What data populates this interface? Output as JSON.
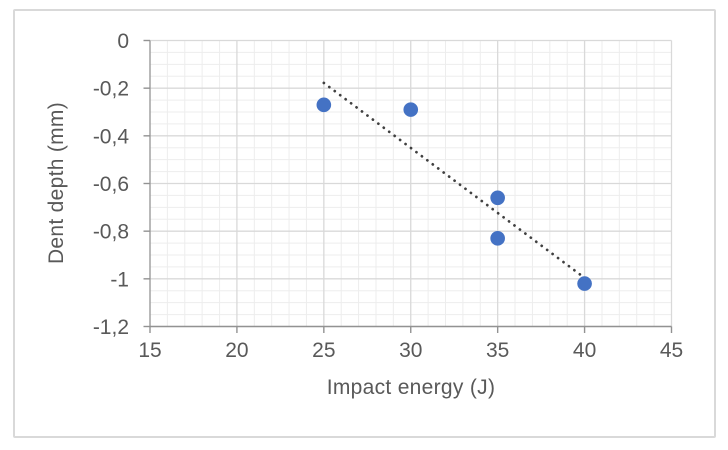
{
  "chart_data": {
    "type": "scatter",
    "title": "",
    "xlabel": "Impact energy (J)",
    "ylabel": "Dent depth (mm)",
    "xlim": [
      15,
      45
    ],
    "ylim": [
      -1.2,
      0
    ],
    "x_ticks": [
      {
        "value": 15,
        "label": "15"
      },
      {
        "value": 20,
        "label": "20"
      },
      {
        "value": 25,
        "label": "25"
      },
      {
        "value": 30,
        "label": "30"
      },
      {
        "value": 35,
        "label": "35"
      },
      {
        "value": 40,
        "label": "40"
      },
      {
        "value": 45,
        "label": "45"
      }
    ],
    "y_ticks": [
      {
        "value": 0,
        "label": "0"
      },
      {
        "value": -0.2,
        "label": "-0,2"
      },
      {
        "value": -0.4,
        "label": "-0,4"
      },
      {
        "value": -0.6,
        "label": "-0,6"
      },
      {
        "value": -0.8,
        "label": "-0,8"
      },
      {
        "value": -1,
        "label": "-1"
      },
      {
        "value": -1.2,
        "label": "-1,2"
      }
    ],
    "x_minor_step": 1,
    "y_minor_step": 0.05,
    "grid": {
      "major": true,
      "minor": true
    },
    "legend_position": "none",
    "series": [
      {
        "name": "Dent depth",
        "marker": "circle",
        "points": [
          [
            25,
            -0.27
          ],
          [
            30,
            -0.29
          ],
          [
            35,
            -0.66
          ],
          [
            35,
            -0.83
          ],
          [
            40,
            -1.02
          ]
        ]
      }
    ],
    "trendline": {
      "type": "linear",
      "style": "dotted",
      "from": [
        25,
        -0.178
      ],
      "to": [
        40,
        -0.996
      ]
    },
    "colors": {
      "marker": "#4472C4",
      "trendline": "#404040",
      "major_gridline": "#D9D9D9",
      "minor_gridline": "#EDEDED",
      "axis_line": "#929292",
      "text": "#595959",
      "chart_border": "#D9D9D9",
      "background": "#FFFFFF"
    }
  }
}
